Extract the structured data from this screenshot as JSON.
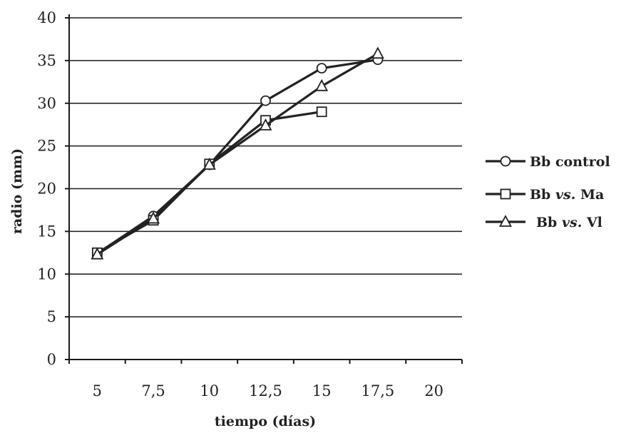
{
  "chart_data": {
    "type": "line",
    "title": "",
    "xlabel": "tiempo (días)",
    "ylabel": "radio (mm)",
    "x_ticks": [
      "5",
      "7,5",
      "10",
      "12,5",
      "15",
      "17,5",
      "20"
    ],
    "y_ticks": [
      "0",
      "5",
      "10",
      "15",
      "20",
      "25",
      "30",
      "35",
      "40"
    ],
    "xlim": [
      3.75,
      21.25
    ],
    "ylim": [
      0,
      40
    ],
    "grid": "horizontal",
    "legend_position": "right",
    "series": [
      {
        "name": "Bb control",
        "marker": "circle",
        "x": [
          5,
          7.5,
          10,
          12.5,
          15,
          17.5
        ],
        "y": [
          12.4,
          16.8,
          22.8,
          30.3,
          34.1,
          35.1
        ]
      },
      {
        "name": "Bb vs. Ma",
        "marker": "square",
        "x": [
          5,
          7.5,
          10,
          12.5,
          15
        ],
        "y": [
          12.5,
          16.3,
          22.9,
          28.0,
          29.0
        ]
      },
      {
        "name": "Bb vs. Vl",
        "marker": "triangle",
        "x": [
          5,
          7.5,
          10,
          12.5,
          15,
          17.5
        ],
        "y": [
          12.3,
          16.5,
          22.8,
          27.4,
          32.0,
          35.8
        ]
      }
    ],
    "legend": [
      {
        "prefix": "Bb ",
        "italic": "",
        "suffix": "control"
      },
      {
        "prefix": "Bb ",
        "italic": "vs.",
        "suffix": " Ma"
      },
      {
        "prefix": "Bb ",
        "italic": "vs.",
        "suffix": " Vl"
      }
    ]
  }
}
